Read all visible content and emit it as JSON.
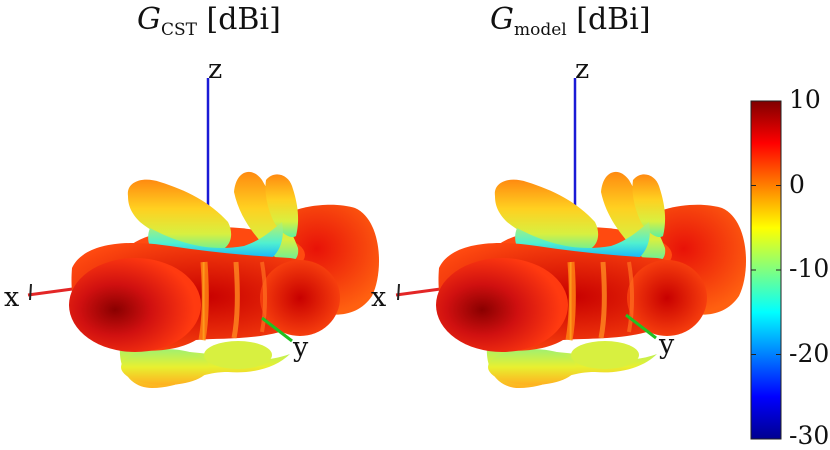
{
  "panels": [
    {
      "title_symbol": "G",
      "title_subscript": "CST",
      "title_unit": "[dBi]",
      "axis_labels": {
        "x": "x",
        "y": "y",
        "z": "z"
      }
    },
    {
      "title_symbol": "G",
      "title_subscript": "model",
      "title_unit": "[dBi]",
      "axis_labels": {
        "x": "x",
        "y": "y",
        "z": "z"
      }
    }
  ],
  "colorbar": {
    "colormap": "jet",
    "range": [
      -30,
      10
    ],
    "ticks": [
      "10",
      "0",
      "-10",
      "-20",
      "-30"
    ]
  },
  "colors": {
    "x_axis": "#e32626",
    "y_axis": "#22c022",
    "z_axis": "#1a1ad6"
  }
}
